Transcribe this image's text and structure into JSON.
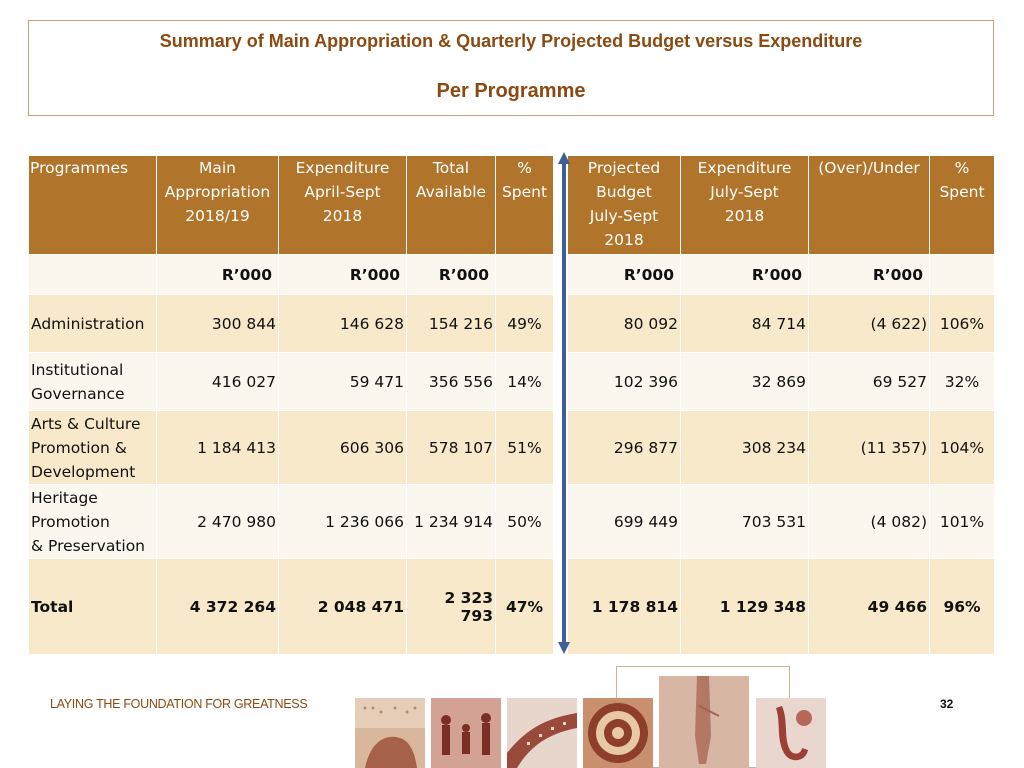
{
  "title": {
    "line1": "Summary of Main Appropriation & Quarterly Projected Budget versus Expenditure",
    "line2": "Per Programme"
  },
  "table": {
    "headers": [
      [
        "Programmes"
      ],
      [
        "Main",
        "Appropriation",
        "2018/19"
      ],
      [
        "Expenditure",
        "April-Sept",
        "2018"
      ],
      [
        "Total",
        "Available"
      ],
      [
        "%",
        "Spent"
      ],
      [
        "Projected",
        "Budget",
        "July-Sept",
        "2018"
      ],
      [
        "Expenditure",
        "July-Sept",
        "2018"
      ],
      [
        "(Over)/Under"
      ],
      [
        "%",
        "Spent"
      ]
    ],
    "units": [
      "",
      "R’000",
      "R’000",
      "R’000",
      "",
      "R’000",
      "R’000",
      "R’000",
      ""
    ],
    "rows": [
      {
        "label": [
          "Administration"
        ],
        "values": [
          "300 844",
          "146 628",
          "154 216",
          "49%",
          "80 092",
          "84 714",
          "(4 622)",
          "106%"
        ]
      },
      {
        "label": [
          "Institutional",
          "Governance"
        ],
        "values": [
          "416 027",
          "59 471",
          "356 556",
          "14%",
          "102 396",
          "32 869",
          "69 527",
          "32%"
        ]
      },
      {
        "label": [
          "Arts & Culture",
          "Promotion &",
          "Development"
        ],
        "values": [
          "1 184 413",
          "606 306",
          "578 107",
          "51%",
          "296 877",
          "308 234",
          "(11 357)",
          "104%"
        ]
      },
      {
        "label": [
          "Heritage",
          "Promotion",
          "& Preservation"
        ],
        "values": [
          "2 470 980",
          "1 236 066",
          "1 234 914",
          "50%",
          "699 449",
          "703 531",
          "(4 082)",
          "101%"
        ]
      }
    ],
    "total": {
      "label": [
        "Total"
      ],
      "values": [
        "4 372 264",
        "2 048 471",
        "2 323 793",
        "47%",
        "1 178 814",
        "1 129 348",
        "49 466",
        "96%"
      ]
    }
  },
  "footer": {
    "tagline": "LAYING THE FOUNDATION FOR GREATNESS",
    "page_number": "32"
  },
  "colors": {
    "header_bg": "#b0742b",
    "title_text": "#8a4a12",
    "row_alt": "#f7e9c9",
    "row_plain": "#fbf7ee",
    "arrow": "#3f5f9a"
  }
}
